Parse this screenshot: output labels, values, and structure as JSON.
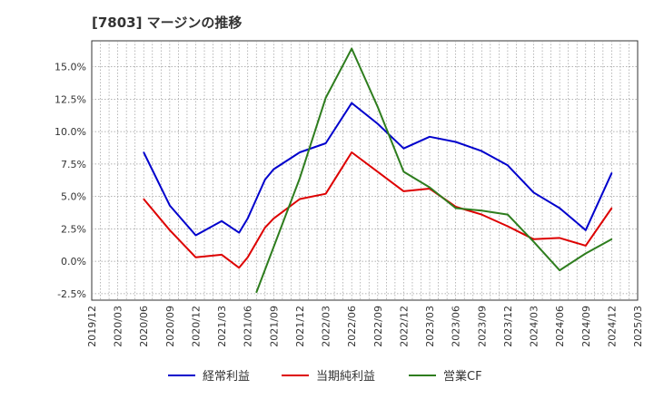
{
  "chart_data": {
    "type": "line",
    "title": "[7803]  マージンの推移",
    "xlabel": "",
    "ylabel": "",
    "x_ticks": [
      "2019/12",
      "2020/03",
      "2020/06",
      "2020/09",
      "2020/12",
      "2021/03",
      "2021/06",
      "2021/09",
      "2021/12",
      "2022/03",
      "2022/06",
      "2022/09",
      "2022/12",
      "2023/03",
      "2023/06",
      "2023/09",
      "2023/12",
      "2024/03",
      "2024/06",
      "2024/09",
      "2024/12",
      "2025/03"
    ],
    "y_ticks": [
      "-2.5%",
      "0.0%",
      "2.5%",
      "5.0%",
      "7.5%",
      "10.0%",
      "12.5%",
      "15.0%"
    ],
    "ylim": [
      -3.0,
      17.0
    ],
    "x_range": [
      "2019/12",
      "2025/03"
    ],
    "grid": true,
    "legend_position": "bottom",
    "series": [
      {
        "name": "経常利益",
        "color": "#0000cc",
        "points": [
          [
            "2020/06",
            8.4
          ],
          [
            "2020/09",
            4.3
          ],
          [
            "2020/12",
            2.0
          ],
          [
            "2021/03",
            3.1
          ],
          [
            "2021/05",
            2.2
          ],
          [
            "2021/06",
            3.3
          ],
          [
            "2021/08",
            6.3
          ],
          [
            "2021/09",
            7.1
          ],
          [
            "2021/12",
            8.4
          ],
          [
            "2022/03",
            9.1
          ],
          [
            "2022/06",
            12.2
          ],
          [
            "2022/09",
            10.6
          ],
          [
            "2022/12",
            8.7
          ],
          [
            "2023/03",
            9.6
          ],
          [
            "2023/06",
            9.2
          ],
          [
            "2023/09",
            8.5
          ],
          [
            "2023/12",
            7.4
          ],
          [
            "2024/03",
            5.3
          ],
          [
            "2024/06",
            4.1
          ],
          [
            "2024/09",
            2.4
          ],
          [
            "2024/12",
            6.8
          ]
        ]
      },
      {
        "name": "当期純利益",
        "color": "#dd0000",
        "points": [
          [
            "2020/06",
            4.8
          ],
          [
            "2020/09",
            2.4
          ],
          [
            "2020/12",
            0.3
          ],
          [
            "2021/03",
            0.5
          ],
          [
            "2021/05",
            -0.5
          ],
          [
            "2021/06",
            0.3
          ],
          [
            "2021/08",
            2.6
          ],
          [
            "2021/09",
            3.3
          ],
          [
            "2021/12",
            4.8
          ],
          [
            "2022/03",
            5.2
          ],
          [
            "2022/06",
            8.4
          ],
          [
            "2022/09",
            6.9
          ],
          [
            "2022/12",
            5.4
          ],
          [
            "2023/03",
            5.6
          ],
          [
            "2023/06",
            4.2
          ],
          [
            "2023/09",
            3.6
          ],
          [
            "2023/12",
            2.7
          ],
          [
            "2024/03",
            1.7
          ],
          [
            "2024/06",
            1.8
          ],
          [
            "2024/09",
            1.2
          ],
          [
            "2024/12",
            4.1
          ]
        ]
      },
      {
        "name": "営業CF",
        "color": "#2e7d1e",
        "points": [
          [
            "2021/07",
            -2.4
          ],
          [
            "2021/12",
            6.4
          ],
          [
            "2022/03",
            12.6
          ],
          [
            "2022/06",
            16.4
          ],
          [
            "2022/09",
            11.9
          ],
          [
            "2022/12",
            6.9
          ],
          [
            "2023/03",
            5.7
          ],
          [
            "2023/06",
            4.1
          ],
          [
            "2023/09",
            3.9
          ],
          [
            "2023/12",
            3.6
          ],
          [
            "2024/03",
            1.5
          ],
          [
            "2024/06",
            -0.7
          ],
          [
            "2024/09",
            0.6
          ],
          [
            "2024/12",
            1.7
          ]
        ]
      }
    ]
  }
}
